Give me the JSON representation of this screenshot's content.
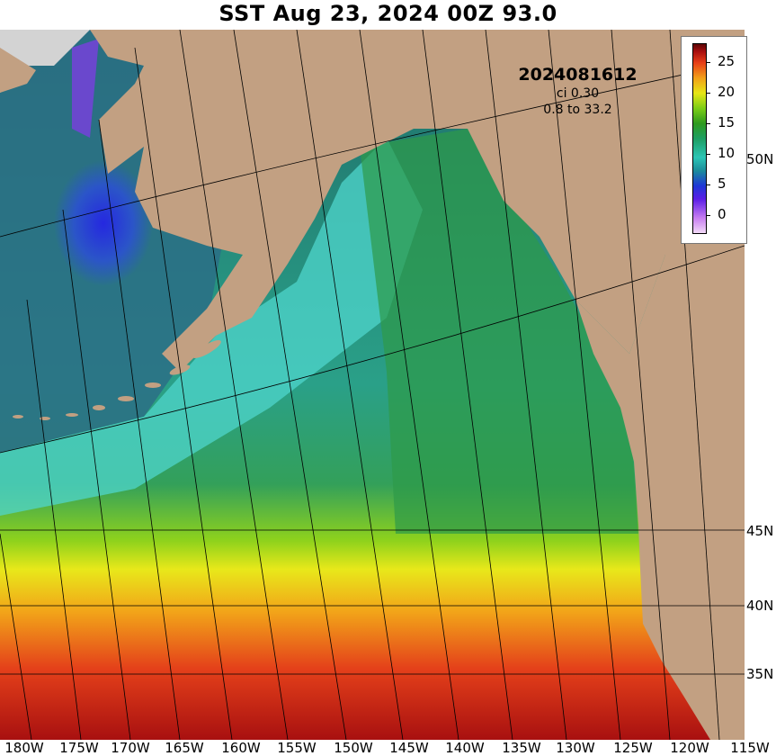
{
  "title": "SST Aug 23, 2024 00Z 93.0",
  "info": {
    "run": "2024081612",
    "ci": "ci 0.30",
    "range": "0.8 to 33.2"
  },
  "colorbar": {
    "labels": [
      "25",
      "20",
      "15",
      "10",
      "5",
      "0"
    ]
  },
  "axes": {
    "lon_labels": [
      "180W",
      "175W",
      "170W",
      "165W",
      "160W",
      "155W",
      "150W",
      "145W",
      "140W",
      "135W",
      "130W",
      "125W",
      "120W",
      "115W"
    ],
    "lat_labels": [
      "50N",
      "45N",
      "40N",
      "35N"
    ]
  },
  "colors": {
    "land": "#c2a082",
    "ice": "#d3d3d3",
    "warm": "#c0150f",
    "cold": "#1a2fd0"
  }
}
